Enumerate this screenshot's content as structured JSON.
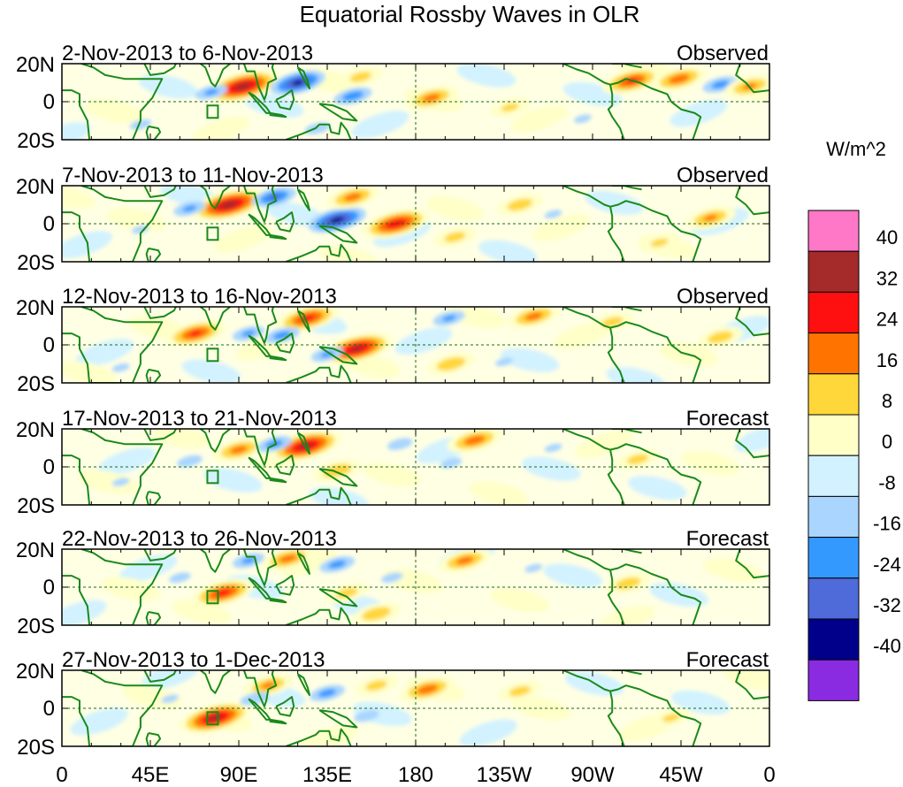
{
  "chart_data": {
    "type": "heatmap",
    "title": "Equatorial Rossby Waves in OLR",
    "units": "W/m^2",
    "x_ticks": [
      "0",
      "45E",
      "90E",
      "135E",
      "180",
      "135W",
      "90W",
      "45W",
      "0"
    ],
    "y_ticks": [
      "20N",
      "0",
      "20S"
    ],
    "xlim": [
      0,
      360
    ],
    "ylim": [
      -20,
      20
    ],
    "levels": [
      40,
      32,
      24,
      16,
      8,
      0,
      -8,
      -16,
      -24,
      -32,
      -40
    ],
    "colors": [
      "#ff77c7",
      "#a52a2a",
      "#ff1010",
      "#ff7400",
      "#ffd73a",
      "#ffffc8",
      "#d2f2ff",
      "#a9d5ff",
      "#3399ff",
      "#4f6ad9",
      "#00008b",
      "#8a2be2"
    ],
    "panels": [
      {
        "period": "2-Nov-2013 to 6-Nov-2013",
        "status": "Observed",
        "anomalies": [
          {
            "lon": 92,
            "lat": 8,
            "value": 36
          },
          {
            "lon": 76,
            "lat": 5,
            "value": -16
          },
          {
            "lon": 120,
            "lat": 10,
            "value": -32
          },
          {
            "lon": 148,
            "lat": 3,
            "value": -20
          },
          {
            "lon": 188,
            "lat": 2,
            "value": 18
          },
          {
            "lon": 228,
            "lat": -3,
            "value": 8
          },
          {
            "lon": 130,
            "lat": -14,
            "value": -12
          },
          {
            "lon": 152,
            "lat": 13,
            "value": 10
          },
          {
            "lon": 290,
            "lat": 11,
            "value": 24
          },
          {
            "lon": 314,
            "lat": 12,
            "value": 20
          },
          {
            "lon": 335,
            "lat": 9,
            "value": -18
          },
          {
            "lon": 350,
            "lat": 8,
            "value": 16
          },
          {
            "lon": 40,
            "lat": -12,
            "value": -10
          },
          {
            "lon": 265,
            "lat": -9,
            "value": -8
          }
        ]
      },
      {
        "period": "7-Nov-2013 to 11-Nov-2013",
        "status": "Observed",
        "anomalies": [
          {
            "lon": 85,
            "lat": 10,
            "value": 36
          },
          {
            "lon": 65,
            "lat": 8,
            "value": -16
          },
          {
            "lon": 108,
            "lat": 14,
            "value": -24
          },
          {
            "lon": 140,
            "lat": 2,
            "value": -34
          },
          {
            "lon": 148,
            "lat": 14,
            "value": 18
          },
          {
            "lon": 170,
            "lat": 0,
            "value": 30
          },
          {
            "lon": 200,
            "lat": -7,
            "value": 10
          },
          {
            "lon": 233,
            "lat": 10,
            "value": 12
          },
          {
            "lon": 250,
            "lat": 5,
            "value": -8
          },
          {
            "lon": 330,
            "lat": 3,
            "value": 16
          },
          {
            "lon": 40,
            "lat": -3,
            "value": -8
          },
          {
            "lon": 304,
            "lat": -10,
            "value": 8
          }
        ]
      },
      {
        "period": "12-Nov-2013 to 16-Nov-2013",
        "status": "Observed",
        "anomalies": [
          {
            "lon": 68,
            "lat": 6,
            "value": 24
          },
          {
            "lon": 125,
            "lat": 14,
            "value": 26
          },
          {
            "lon": 95,
            "lat": 6,
            "value": -16
          },
          {
            "lon": 112,
            "lat": 5,
            "value": -18
          },
          {
            "lon": 150,
            "lat": -2,
            "value": 34
          },
          {
            "lon": 135,
            "lat": -5,
            "value": -16
          },
          {
            "lon": 197,
            "lat": 14,
            "value": -16
          },
          {
            "lon": 198,
            "lat": -10,
            "value": 14
          },
          {
            "lon": 240,
            "lat": 15,
            "value": 18
          },
          {
            "lon": 280,
            "lat": 12,
            "value": 10
          },
          {
            "lon": 335,
            "lat": 4,
            "value": 12
          },
          {
            "lon": 30,
            "lat": -12,
            "value": -8
          },
          {
            "lon": 225,
            "lat": -9,
            "value": -8
          }
        ]
      },
      {
        "period": "17-Nov-2013 to 21-Nov-2013",
        "status": "Forecast",
        "anomalies": [
          {
            "lon": 124,
            "lat": 11,
            "value": 34
          },
          {
            "lon": 90,
            "lat": 9,
            "value": 18
          },
          {
            "lon": 108,
            "lat": 12,
            "value": -18
          },
          {
            "lon": 140,
            "lat": -2,
            "value": 14
          },
          {
            "lon": 172,
            "lat": 12,
            "value": -12
          },
          {
            "lon": 210,
            "lat": 14,
            "value": 20
          },
          {
            "lon": 65,
            "lat": 3,
            "value": -12
          },
          {
            "lon": 198,
            "lat": 2,
            "value": -10
          },
          {
            "lon": 293,
            "lat": 4,
            "value": 10
          },
          {
            "lon": 250,
            "lat": 10,
            "value": -8
          },
          {
            "lon": 30,
            "lat": -8,
            "value": -8
          }
        ]
      },
      {
        "period": "22-Nov-2013 to 26-Nov-2013",
        "status": "Forecast",
        "anomalies": [
          {
            "lon": 82,
            "lat": -3,
            "value": 26
          },
          {
            "lon": 115,
            "lat": 15,
            "value": 18
          },
          {
            "lon": 160,
            "lat": -14,
            "value": 14
          },
          {
            "lon": 205,
            "lat": 14,
            "value": 18
          },
          {
            "lon": 95,
            "lat": 14,
            "value": -16
          },
          {
            "lon": 140,
            "lat": 12,
            "value": -18
          },
          {
            "lon": 60,
            "lat": 5,
            "value": -10
          },
          {
            "lon": 145,
            "lat": -3,
            "value": 10
          },
          {
            "lon": 288,
            "lat": 2,
            "value": 12
          },
          {
            "lon": 240,
            "lat": 10,
            "value": -8
          },
          {
            "lon": 168,
            "lat": 5,
            "value": -10
          }
        ]
      },
      {
        "period": "27-Nov-2013 to 1-Dec-2013",
        "status": "Forecast",
        "anomalies": [
          {
            "lon": 78,
            "lat": -5,
            "value": 34
          },
          {
            "lon": 105,
            "lat": 12,
            "value": 16
          },
          {
            "lon": 186,
            "lat": 10,
            "value": 20
          },
          {
            "lon": 135,
            "lat": 8,
            "value": -18
          },
          {
            "lon": 98,
            "lat": 5,
            "value": -14
          },
          {
            "lon": 155,
            "lat": -4,
            "value": -12
          },
          {
            "lon": 160,
            "lat": 12,
            "value": 10
          },
          {
            "lon": 233,
            "lat": 9,
            "value": 10
          },
          {
            "lon": 55,
            "lat": 5,
            "value": -8
          },
          {
            "lon": 310,
            "lat": -5,
            "value": 8
          }
        ]
      }
    ]
  }
}
